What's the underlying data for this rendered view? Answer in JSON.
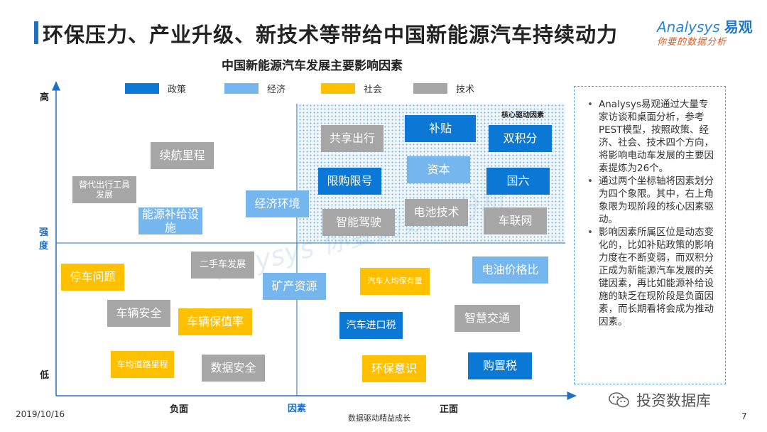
{
  "header": {
    "title": "环保压力、产业升级、新技术等带给中国新能源汽车持续动力",
    "logo_name": "Analysys",
    "logo_cn": "易观",
    "logo_tagline": "你要的数据分析"
  },
  "diagram": {
    "subtitle": "中国新能源汽车发展主要影响因素",
    "legend": [
      {
        "label": "政策",
        "color": "#0a78d4"
      },
      {
        "label": "经济",
        "color": "#76b6ee"
      },
      {
        "label": "社会",
        "color": "#ffc000"
      },
      {
        "label": "技术",
        "color": "#a6a6a6"
      }
    ],
    "core_label": "核心驱动因素",
    "axis": {
      "y_high": "高",
      "y_mid_1": "强",
      "y_mid_2": "度",
      "y_low": "低",
      "x_negative": "负面",
      "x_factor": "因素",
      "x_positive": "正面"
    },
    "factors": [
      {
        "label": "共享出行",
        "category": "技术"
      },
      {
        "label": "补贴",
        "category": "政策"
      },
      {
        "label": "双积分",
        "category": "政策"
      },
      {
        "label": "续航里程",
        "category": "技术"
      },
      {
        "label": "资本",
        "category": "经济"
      },
      {
        "label": "替代出行工具发展",
        "category": "技术"
      },
      {
        "label": "限购限号",
        "category": "政策"
      },
      {
        "label": "国六",
        "category": "政策"
      },
      {
        "label": "经济环境",
        "category": "经济"
      },
      {
        "label": "电池技术",
        "category": "技术"
      },
      {
        "label": "能源补给设施",
        "category": "经济"
      },
      {
        "label": "智能驾驶",
        "category": "技术"
      },
      {
        "label": "车联网",
        "category": "技术"
      },
      {
        "label": "二手车发展",
        "category": "技术"
      },
      {
        "label": "电油价格比",
        "category": "经济"
      },
      {
        "label": "停车问题",
        "category": "社会"
      },
      {
        "label": "矿产资源",
        "category": "经济"
      },
      {
        "label": "汽车人均保有量",
        "category": "社会"
      },
      {
        "label": "车辆安全",
        "category": "技术"
      },
      {
        "label": "智慧交通",
        "category": "技术"
      },
      {
        "label": "车辆保值率",
        "category": "社会"
      },
      {
        "label": "汽车进口税",
        "category": "政策"
      },
      {
        "label": "车均道路里程",
        "category": "社会"
      },
      {
        "label": "数据安全",
        "category": "技术"
      },
      {
        "label": "环保意识",
        "category": "社会"
      },
      {
        "label": "购置税",
        "category": "政策"
      }
    ]
  },
  "notes": [
    "Analysys易观通过大量专家访谈和桌面分析，参考PEST模型，按照政策、经济、社会、技术四个方向，将影响电动车发展的主要因素提炼为26个。",
    "通过两个坐标轴将因素划分为四个象限。其中，右上角象限为现阶段的核心因素驱动。",
    "影响因素所属区位是动态变化的，比如补贴政策的影响力度在不断变弱，而双积分正成为新能源汽车发展的关键因素，再比如能源补给设施的缺乏在现阶段是负面因素，而长期看将会成为推动因素。"
  ],
  "watermark": "nalysys 你要的数据分析",
  "footer": {
    "date": "2019/10/16",
    "center": "数据驱动精益成长",
    "page": "7",
    "wechat": "投资数据库"
  }
}
